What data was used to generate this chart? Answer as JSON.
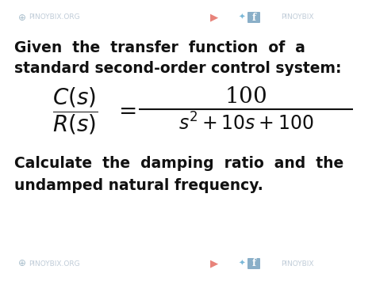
{
  "bg_color": "#ffffff",
  "text_color": "#111111",
  "header_line1": "Given  the  transfer  function  of  a",
  "header_line2": "standard second-order control system:",
  "footer_line1": "Calculate  the  damping  ratio  and  the",
  "footer_line2": "undamped natural frequency.",
  "watermark_color": "#c0ccd8",
  "watermark_left": "PINOYBIX.ORG",
  "watermark_right": "PINOYBIX",
  "wm_fontsize": 6.5,
  "main_fontsize": 13.5,
  "formula_fontsize": 17,
  "yt_color": "#e8837a",
  "tw_color": "#7ab8d8",
  "fb_color": "#8aafc8",
  "globe_color": "#a8becc"
}
